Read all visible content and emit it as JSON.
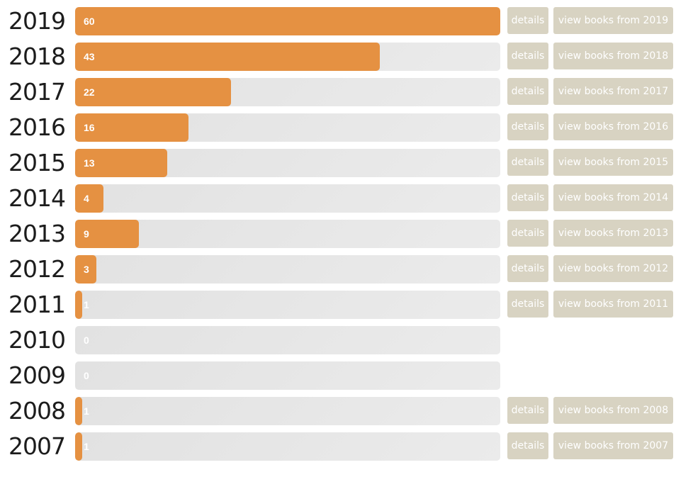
{
  "chart_data": {
    "type": "bar",
    "orientation": "horizontal",
    "categories": [
      "2019",
      "2018",
      "2017",
      "2016",
      "2015",
      "2014",
      "2013",
      "2012",
      "2011",
      "2010",
      "2009",
      "2008",
      "2007"
    ],
    "values": [
      60,
      43,
      22,
      16,
      13,
      4,
      9,
      3,
      1,
      0,
      0,
      1,
      1
    ],
    "xlim": [
      0,
      60
    ],
    "grid": false,
    "colors": {
      "bar": "#e59142",
      "track": "#e6e6e6",
      "button": "#d8d3c2"
    }
  },
  "rows": [
    {
      "year": "2019",
      "count": "60",
      "details_label": "details",
      "view_label": "view books from 2019",
      "has_buttons": true
    },
    {
      "year": "2018",
      "count": "43",
      "details_label": "details",
      "view_label": "view books from 2018",
      "has_buttons": true
    },
    {
      "year": "2017",
      "count": "22",
      "details_label": "details",
      "view_label": "view books from 2017",
      "has_buttons": true
    },
    {
      "year": "2016",
      "count": "16",
      "details_label": "details",
      "view_label": "view books from 2016",
      "has_buttons": true
    },
    {
      "year": "2015",
      "count": "13",
      "details_label": "details",
      "view_label": "view books from 2015",
      "has_buttons": true
    },
    {
      "year": "2014",
      "count": "4",
      "details_label": "details",
      "view_label": "view books from 2014",
      "has_buttons": true
    },
    {
      "year": "2013",
      "count": "9",
      "details_label": "details",
      "view_label": "view books from 2013",
      "has_buttons": true
    },
    {
      "year": "2012",
      "count": "3",
      "details_label": "details",
      "view_label": "view books from 2012",
      "has_buttons": true
    },
    {
      "year": "2011",
      "count": "1",
      "details_label": "details",
      "view_label": "view books from 2011",
      "has_buttons": true
    },
    {
      "year": "2010",
      "count": "0",
      "has_buttons": false
    },
    {
      "year": "2009",
      "count": "0",
      "has_buttons": false
    },
    {
      "year": "2008",
      "count": "1",
      "details_label": "details",
      "view_label": "view books from 2008",
      "has_buttons": true
    },
    {
      "year": "2007",
      "count": "1",
      "details_label": "details",
      "view_label": "view books from 2007",
      "has_buttons": true
    }
  ]
}
